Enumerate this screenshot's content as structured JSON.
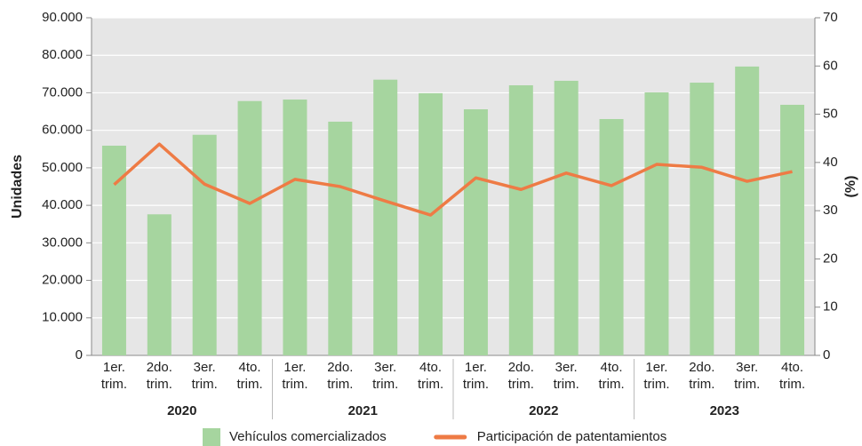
{
  "chart_data": {
    "type": "bar_line",
    "y_label": "Unidades",
    "y2_label": "(%)",
    "categories": [
      [
        "1er.",
        "trim."
      ],
      [
        "2do.",
        "trim."
      ],
      [
        "3er.",
        "trim."
      ],
      [
        "4to.",
        "trim."
      ],
      [
        "1er.",
        "trim."
      ],
      [
        "2do.",
        "trim."
      ],
      [
        "3er.",
        "trim."
      ],
      [
        "4to.",
        "trim."
      ],
      [
        "1er.",
        "trim."
      ],
      [
        "2do.",
        "trim."
      ],
      [
        "3er.",
        "trim."
      ],
      [
        "4to.",
        "trim."
      ],
      [
        "1er.",
        "trim."
      ],
      [
        "2do.",
        "trim."
      ],
      [
        "3er.",
        "trim."
      ],
      [
        "4to.",
        "trim."
      ]
    ],
    "year_groups": [
      "2020",
      "2021",
      "2022",
      "2023"
    ],
    "series": [
      {
        "name": "Vehículos comercializados",
        "type": "bar",
        "color": "#a6d59f",
        "values": [
          55900,
          37600,
          58800,
          67800,
          68200,
          62300,
          73500,
          69900,
          65600,
          72000,
          73200,
          63000,
          70100,
          72700,
          77000,
          66800
        ]
      },
      {
        "name": "Participación de patentamientos",
        "type": "line",
        "axis": "y2",
        "color": "#ee7b45",
        "values": [
          35.4,
          43.8,
          35.5,
          31.5,
          36.5,
          35.0,
          32.0,
          29.1,
          36.8,
          34.4,
          37.8,
          35.2,
          39.6,
          39.0,
          36.1,
          38.1
        ]
      }
    ],
    "ylim": [
      0,
      90000
    ],
    "yticks": [
      {
        "value": 0,
        "label": "0"
      },
      {
        "value": 10000,
        "label": "10.000"
      },
      {
        "value": 20000,
        "label": "20.000"
      },
      {
        "value": 30000,
        "label": "30.000"
      },
      {
        "value": 40000,
        "label": "40.000"
      },
      {
        "value": 50000,
        "label": "50.000"
      },
      {
        "value": 60000,
        "label": "60.000"
      },
      {
        "value": 70000,
        "label": "70.000"
      },
      {
        "value": 80000,
        "label": "80.000"
      },
      {
        "value": 90000,
        "label": "90.000"
      }
    ],
    "y2lim": [
      0,
      70
    ],
    "y2ticks": [
      0,
      10,
      20,
      30,
      40,
      50,
      60,
      70
    ],
    "grid": true,
    "plot_background": "#e6e6e6",
    "legend": "bottom"
  }
}
